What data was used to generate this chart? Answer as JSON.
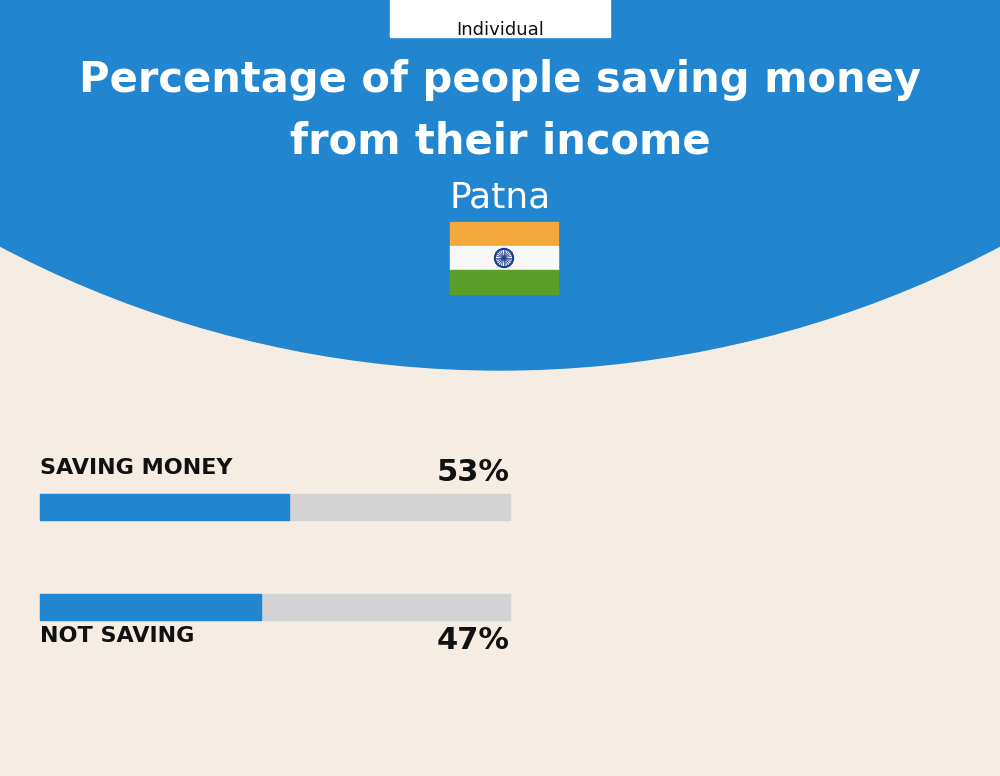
{
  "title_line1": "Percentage of people saving money",
  "title_line2": "from their income",
  "subtitle": "Patna",
  "tab_label": "Individual",
  "background_top": "#2185D0",
  "background_bottom": "#F5EDE3",
  "bar_color": "#2185D0",
  "bar_bg_color": "#D3D3D3",
  "categories": [
    "SAVING MONEY",
    "NOT SAVING"
  ],
  "values": [
    53,
    47
  ],
  "text_color_white": "#FFFFFF",
  "text_color_black": "#111111",
  "title_fontsize": 30,
  "subtitle_fontsize": 26,
  "bar_label_fontsize": 16,
  "pct_fontsize": 22,
  "flag_orange": "#F4A83A",
  "flag_white": "#F8F8F8",
  "flag_green": "#5B9E2A",
  "flag_ashoka_color": "#1A3A8A",
  "tab_border_color": "#AAAAAA"
}
